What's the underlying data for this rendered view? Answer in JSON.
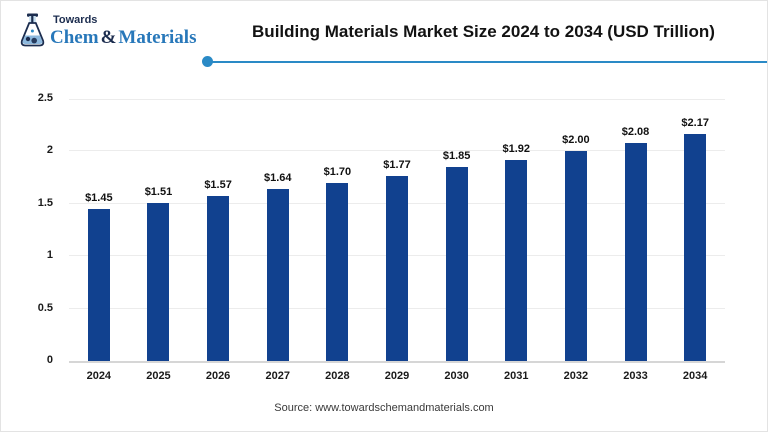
{
  "header": {
    "logo": {
      "tagline": "Towards",
      "chem": "Chem",
      "amp": "&",
      "materials": "Materials"
    },
    "title": "Building Materials Market Size 2024 to 2034 (USD Trillion)"
  },
  "footer": {
    "source": "Source: www.towardschemandmaterials.com"
  },
  "colors": {
    "bar": "#11418f",
    "accent_line": "#2a8ac6",
    "brand_blue": "#2878ba",
    "brand_navy": "#1c2d4f",
    "grid": "#ececec",
    "axis": "#d6d6d6"
  },
  "chart_data": {
    "type": "bar",
    "title": "Building Materials Market Size 2024 to 2034 (USD Trillion)",
    "unit": "USD Trillion",
    "categories": [
      "2024",
      "2025",
      "2026",
      "2027",
      "2028",
      "2029",
      "2030",
      "2031",
      "2032",
      "2033",
      "2034"
    ],
    "values": [
      1.45,
      1.51,
      1.57,
      1.64,
      1.7,
      1.77,
      1.85,
      1.92,
      2.0,
      2.08,
      2.17
    ],
    "bar_labels": [
      "$1.45",
      "$1.51",
      "$1.57",
      "$1.64",
      "$1.70",
      "$1.77",
      "$1.85",
      "$1.92",
      "$2.00",
      "$2.08",
      "$2.17"
    ],
    "xlabel": "",
    "ylabel": "",
    "ylim": [
      0,
      2.5
    ],
    "yticks": [
      0,
      0.5,
      1,
      1.5,
      2,
      2.5
    ],
    "ytick_labels": [
      "0",
      "0.5",
      "1",
      "1.5",
      "2",
      "2.5"
    ],
    "grid": true,
    "legend": "none",
    "source": "Source: www.towardschemandmaterials.com"
  }
}
